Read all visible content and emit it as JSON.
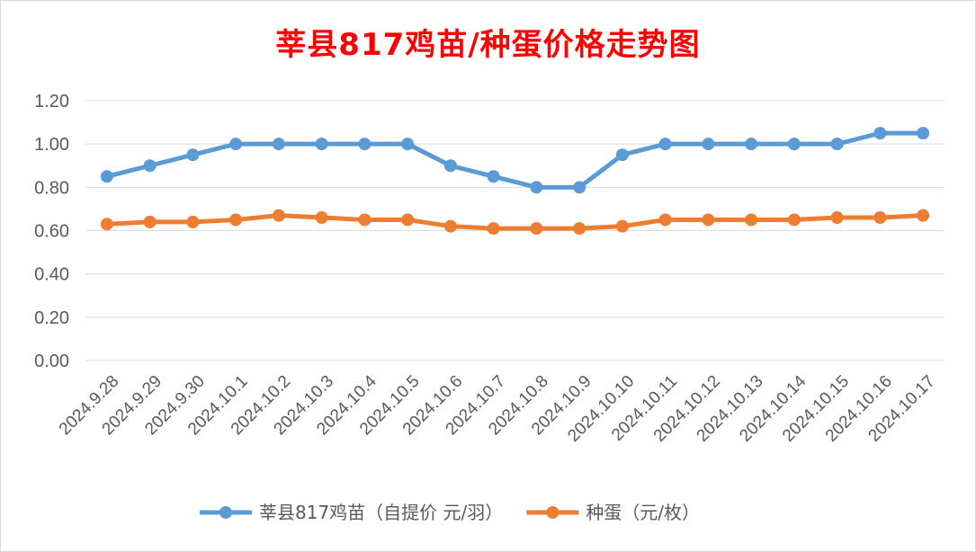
{
  "chart_data": {
    "type": "line",
    "title": "莘县817鸡苗/种蛋价格走势图",
    "xlabel": "",
    "ylabel": "",
    "ylim": [
      0,
      1.2
    ],
    "yticks": [
      "0.00",
      "0.20",
      "0.40",
      "0.60",
      "0.80",
      "1.00",
      "1.20"
    ],
    "grid": true,
    "legend_position": "bottom",
    "categories": [
      "2024.9.28",
      "2024.9.29",
      "2024.9.30",
      "2024.10.1",
      "2024.10.2",
      "2024.10.3",
      "2024.10.4",
      "2024.10.5",
      "2024.10.6",
      "2024.10.7",
      "2024.10.8",
      "2024.10.9",
      "2024.10.10",
      "2024.10.11",
      "2024.10.12",
      "2024.10.13",
      "2024.10.14",
      "2024.10.15",
      "2024.10.16",
      "2024.10.17"
    ],
    "series": [
      {
        "name": "莘县817鸡苗（自提价 元/羽）",
        "color": "#5b9bd5",
        "values": [
          0.85,
          0.9,
          0.95,
          1.0,
          1.0,
          1.0,
          1.0,
          1.0,
          0.9,
          0.85,
          0.8,
          0.8,
          0.95,
          1.0,
          1.0,
          1.0,
          1.0,
          1.0,
          1.05,
          1.05
        ]
      },
      {
        "name": "种蛋（元/枚）",
        "color": "#ed7d31",
        "values": [
          0.63,
          0.64,
          0.64,
          0.65,
          0.67,
          0.66,
          0.65,
          0.65,
          0.62,
          0.61,
          0.61,
          0.61,
          0.62,
          0.65,
          0.65,
          0.65,
          0.65,
          0.66,
          0.66,
          0.67
        ]
      }
    ]
  }
}
